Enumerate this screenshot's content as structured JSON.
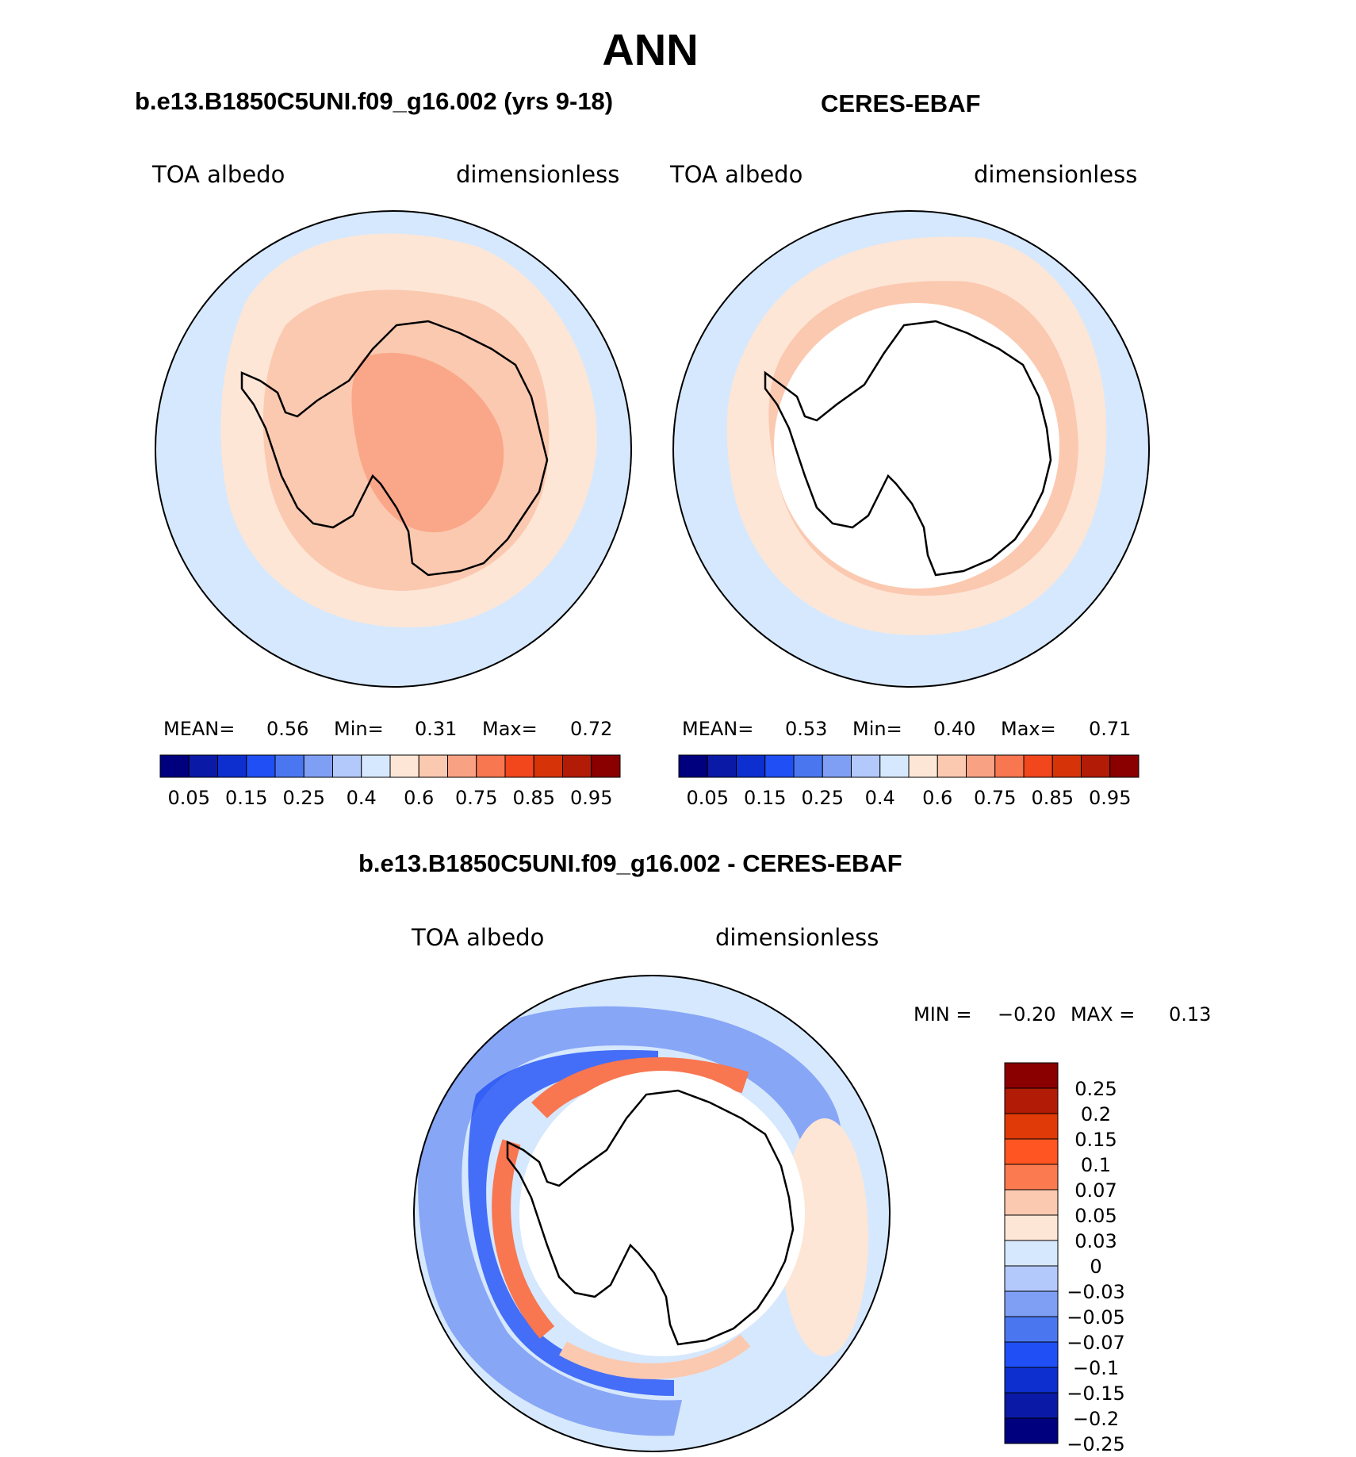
{
  "figure": {
    "title": "ANN",
    "panels": [
      {
        "id": "model",
        "header": "b.e13.B1850C5UNI.f09_g16.002 (yrs 9-18)",
        "left_label": "TOA albedo",
        "right_label": "dimensionless",
        "stats": {
          "mean_label": "MEAN=",
          "mean": "0.56",
          "min_label": "Min=",
          "min": "0.31",
          "max_label": "Max=",
          "max": "0.72"
        }
      },
      {
        "id": "obs",
        "header": "CERES-EBAF",
        "left_label": "TOA albedo",
        "right_label": "dimensionless",
        "stats": {
          "mean_label": "MEAN=",
          "mean": "0.53",
          "min_label": "Min=",
          "min": "0.40",
          "max_label": "Max=",
          "max": "0.71"
        }
      },
      {
        "id": "diff",
        "header": "b.e13.B1850C5UNI.f09_g16.002 - CERES-EBAF",
        "left_label": "TOA albedo",
        "right_label": "dimensionless",
        "stats": {
          "min_label": "MIN =",
          "min": "−0.20",
          "max_label": "MAX =",
          "max": "0.13"
        }
      }
    ],
    "colorbar_top": {
      "colors": [
        "#00007f",
        "#0a1aa6",
        "#0d2fcf",
        "#1f4ff5",
        "#4a77f0",
        "#7f9ff5",
        "#b3c9fb",
        "#d6e8fd",
        "#fde6d6",
        "#fbc9b0",
        "#f9a183",
        "#f87650",
        "#f2461d",
        "#d63408",
        "#b21b06",
        "#8a0000"
      ],
      "labels": [
        "0.05",
        "0.15",
        "0.25",
        "0.4",
        "0.6",
        "0.75",
        "0.85",
        "0.95"
      ]
    },
    "colorbar_diff": {
      "colors": [
        "#8a0000",
        "#b21b06",
        "#e03a08",
        "#ff5522",
        "#fb7a50",
        "#fbc9b0",
        "#fde6d6",
        "#d6e8fd",
        "#b3c9fb",
        "#7f9ff5",
        "#4a77f0",
        "#1f4ff5",
        "#0d2fcf",
        "#0a1aa6",
        "#00007f"
      ],
      "labels": [
        "0.25",
        "0.2",
        "0.15",
        "0.1",
        "0.07",
        "0.05",
        "0.03",
        "0",
        "−0.03",
        "−0.05",
        "−0.07",
        "−0.1",
        "−0.15",
        "−0.2",
        "−0.25"
      ]
    }
  }
}
